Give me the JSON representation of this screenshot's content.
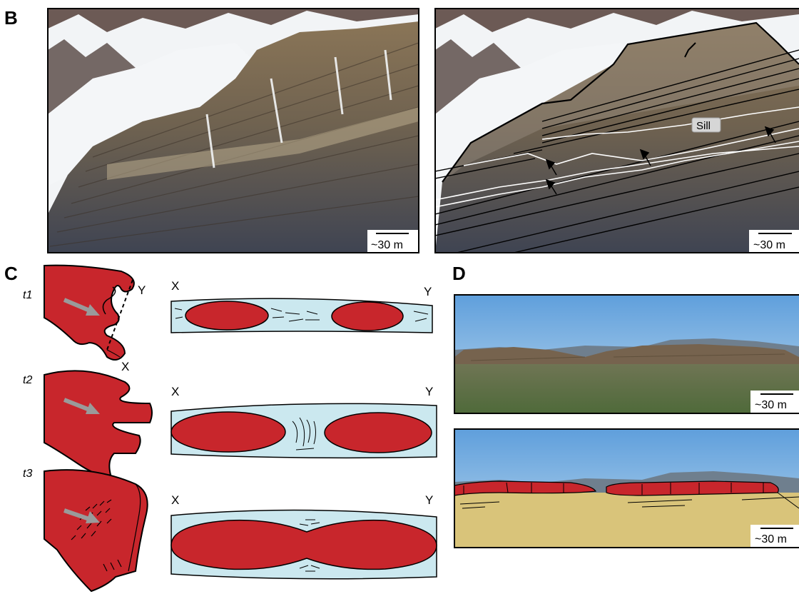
{
  "panels": {
    "b": {
      "letter": "B",
      "scale_left": "~30 m",
      "scale_right": "~30 m",
      "sill_label": "Sill"
    },
    "c": {
      "letter": "C",
      "stages": [
        {
          "time": "t1",
          "x_label": "X",
          "y_label": "Y",
          "map_x": "X",
          "map_y": "Y"
        },
        {
          "time": "t2",
          "x_label": "X",
          "y_label": "Y"
        },
        {
          "time": "t3",
          "x_label": "X",
          "y_label": "Y"
        }
      ]
    },
    "d": {
      "letter": "D",
      "scale_top": "~30 m",
      "scale_bottom": "~30 m"
    }
  },
  "colors": {
    "magma": "#c8262c",
    "host_rock": "#cbe8ef",
    "overlay_fill": "#d9c47a",
    "sky": "#8fbfe6",
    "arrow_gray": "#9a9a9a"
  }
}
